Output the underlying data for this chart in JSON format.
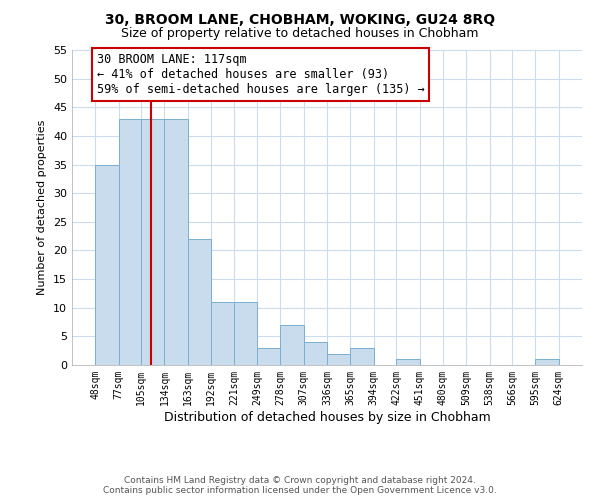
{
  "title": "30, BROOM LANE, CHOBHAM, WOKING, GU24 8RQ",
  "subtitle": "Size of property relative to detached houses in Chobham",
  "xlabel": "Distribution of detached houses by size in Chobham",
  "ylabel": "Number of detached properties",
  "bin_edges": [
    48,
    77,
    105,
    134,
    163,
    192,
    221,
    249,
    278,
    307,
    336,
    365,
    394,
    422,
    451,
    480,
    509,
    538,
    566,
    595,
    624
  ],
  "bin_labels": [
    "48sqm",
    "77sqm",
    "105sqm",
    "134sqm",
    "163sqm",
    "192sqm",
    "221sqm",
    "249sqm",
    "278sqm",
    "307sqm",
    "336sqm",
    "365sqm",
    "394sqm",
    "422sqm",
    "451sqm",
    "480sqm",
    "509sqm",
    "538sqm",
    "566sqm",
    "595sqm",
    "624sqm"
  ],
  "counts": [
    35,
    43,
    43,
    43,
    22,
    11,
    11,
    3,
    7,
    4,
    2,
    3,
    0,
    1,
    0,
    0,
    0,
    0,
    0,
    1
  ],
  "bar_color": "#c8dcee",
  "bar_edge_color": "#7aaed0",
  "property_value": 117,
  "property_line_color": "#cc0000",
  "annotation_line1": "30 BROOM LANE: 117sqm",
  "annotation_line2": "← 41% of detached houses are smaller (93)",
  "annotation_line3": "59% of semi-detached houses are larger (135) →",
  "annotation_box_color": "#ffffff",
  "annotation_box_edge_color": "#cc0000",
  "ylim": [
    0,
    55
  ],
  "yticks": [
    0,
    5,
    10,
    15,
    20,
    25,
    30,
    35,
    40,
    45,
    50,
    55
  ],
  "footer_line1": "Contains HM Land Registry data © Crown copyright and database right 2024.",
  "footer_line2": "Contains public sector information licensed under the Open Government Licence v3.0.",
  "background_color": "#ffffff",
  "grid_color": "#ccdcec"
}
